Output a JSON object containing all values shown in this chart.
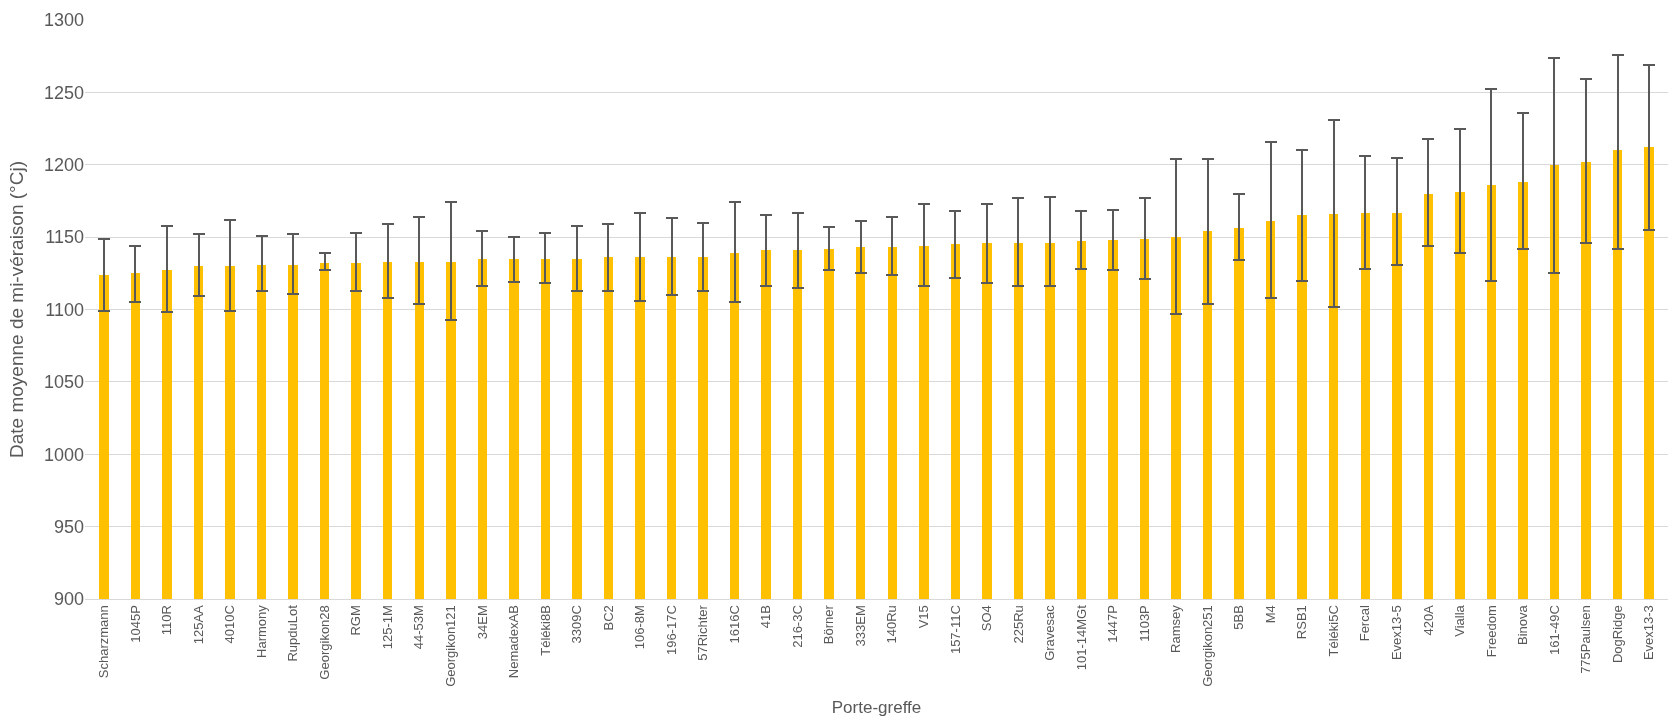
{
  "chart_data": {
    "type": "bar",
    "xlabel": "Porte-greffe",
    "ylabel": "Date moyenne de mi-véraison (°Cj)",
    "categories": [
      "Scharzmann",
      "1045P",
      "110R",
      "125AA",
      "4010C",
      "Harmony",
      "RupduLot",
      "Georgikon28",
      "RGM",
      "125-1M",
      "44-53M",
      "Georgikon121",
      "34EM",
      "NemadexAB",
      "Téléki8B",
      "3309C",
      "BC2",
      "106-8M",
      "196-17C",
      "57Richter",
      "1616C",
      "41B",
      "216-3C",
      "Börner",
      "333EM",
      "140Ru",
      "V15",
      "157-11C",
      "SO4",
      "225Ru",
      "Gravesac",
      "101-14MGt",
      "1447P",
      "1103P",
      "Ramsey",
      "Georgikon251",
      "5BB",
      "M4",
      "RSB1",
      "Téléki5C",
      "Fercal",
      "Evex13-5",
      "420A",
      "Vialla",
      "Freedom",
      "Binova",
      "161-49C",
      "775Paulsen",
      "DogRidge",
      "Evex13-3"
    ],
    "values": [
      1124,
      1125,
      1127,
      1130,
      1130,
      1131,
      1131,
      1132,
      1132,
      1133,
      1133,
      1133,
      1135,
      1135,
      1135,
      1135,
      1136,
      1136,
      1136,
      1136,
      1139,
      1141,
      1141,
      1142,
      1143,
      1143,
      1144,
      1145,
      1146,
      1146,
      1146,
      1147,
      1148,
      1149,
      1150,
      1154,
      1156,
      1161,
      1165,
      1166,
      1167,
      1167,
      1180,
      1181,
      1186,
      1188,
      1200,
      1202,
      1210,
      1212
    ],
    "errors": [
      [
        1099,
        1149
      ],
      [
        1105,
        1144
      ],
      [
        1098,
        1158
      ],
      [
        1109,
        1152
      ],
      [
        1099,
        1162
      ],
      [
        1113,
        1151
      ],
      [
        1111,
        1152
      ],
      [
        1127,
        1139
      ],
      [
        1113,
        1153
      ],
      [
        1108,
        1159
      ],
      [
        1104,
        1164
      ],
      [
        1093,
        1174
      ],
      [
        1116,
        1154
      ],
      [
        1119,
        1150
      ],
      [
        1118,
        1153
      ],
      [
        1113,
        1158
      ],
      [
        1113,
        1159
      ],
      [
        1106,
        1167
      ],
      [
        1110,
        1163
      ],
      [
        1113,
        1160
      ],
      [
        1105,
        1174
      ],
      [
        1116,
        1165
      ],
      [
        1115,
        1167
      ],
      [
        1127,
        1157
      ],
      [
        1125,
        1161
      ],
      [
        1124,
        1164
      ],
      [
        1116,
        1173
      ],
      [
        1122,
        1168
      ],
      [
        1118,
        1173
      ],
      [
        1116,
        1177
      ],
      [
        1116,
        1178
      ],
      [
        1128,
        1168
      ],
      [
        1127,
        1169
      ],
      [
        1121,
        1177
      ],
      [
        1097,
        1204
      ],
      [
        1104,
        1204
      ],
      [
        1134,
        1180
      ],
      [
        1108,
        1216
      ],
      [
        1120,
        1210
      ],
      [
        1102,
        1231
      ],
      [
        1128,
        1206
      ],
      [
        1131,
        1205
      ],
      [
        1144,
        1218
      ],
      [
        1139,
        1225
      ],
      [
        1120,
        1252
      ],
      [
        1142,
        1236
      ],
      [
        1125,
        1274
      ],
      [
        1146,
        1259
      ],
      [
        1142,
        1276
      ],
      [
        1155,
        1269
      ]
    ],
    "color": "#ffc000",
    "ylim": [
      900,
      1300
    ],
    "yticks": [
      900,
      950,
      1000,
      1050,
      1100,
      1150,
      1200,
      1250,
      1300
    ],
    "grid": "y"
  }
}
